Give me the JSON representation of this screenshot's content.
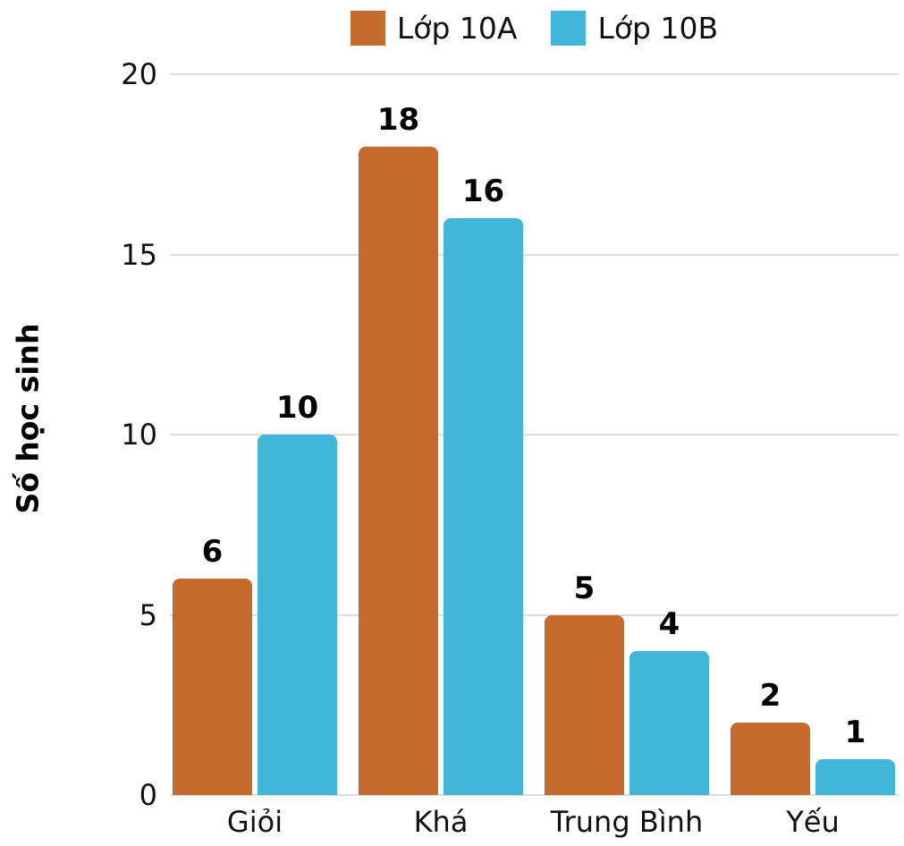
{
  "chart_data": {
    "type": "bar",
    "categories": [
      "Giỏi",
      "Khá",
      "Trung Bình",
      "Yếu"
    ],
    "series": [
      {
        "name": "Lớp 10A",
        "color": "#C56B2D",
        "values": [
          6,
          18,
          5,
          2
        ]
      },
      {
        "name": "Lớp 10B",
        "color": "#41B6D8",
        "values": [
          10,
          16,
          4,
          1
        ]
      }
    ],
    "title": "",
    "xlabel": "",
    "ylabel": "Số học sinh",
    "ylim": [
      0,
      20
    ],
    "yticks": [
      0,
      5,
      10,
      15,
      20
    ],
    "grid": true,
    "legend_position": "top-center",
    "value_labels_shown": true,
    "gridline_color": "#dcdcdc",
    "text_color": "#111111"
  }
}
